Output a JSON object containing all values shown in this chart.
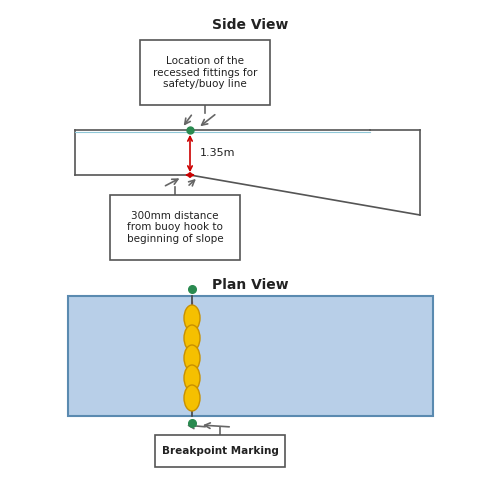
{
  "background_color": "#ffffff",
  "title_side": "Side View",
  "title_plan": "Plan View",
  "title_fontsize": 10,
  "green_dot_color": "#2a8a50",
  "red_arrow_color": "#cc0000",
  "dimension_label": "1.35m",
  "callout_box1_text": "Location of the\nrecessed fittings for\nsafety/buoy line",
  "callout_box2_text": "300mm distance\nfrom buoy hook to\nbeginning of slope",
  "plan_pool_color": "#b8cfe8",
  "plan_pool_border": "#5a8ab0",
  "plan_buoy_color": "#f5c000",
  "plan_buoy_border": "#c89000",
  "plan_rope_color": "#d08080",
  "breakpoint_text": "Breakpoint Marking",
  "border_color": "#555555",
  "line_color": "#666666"
}
